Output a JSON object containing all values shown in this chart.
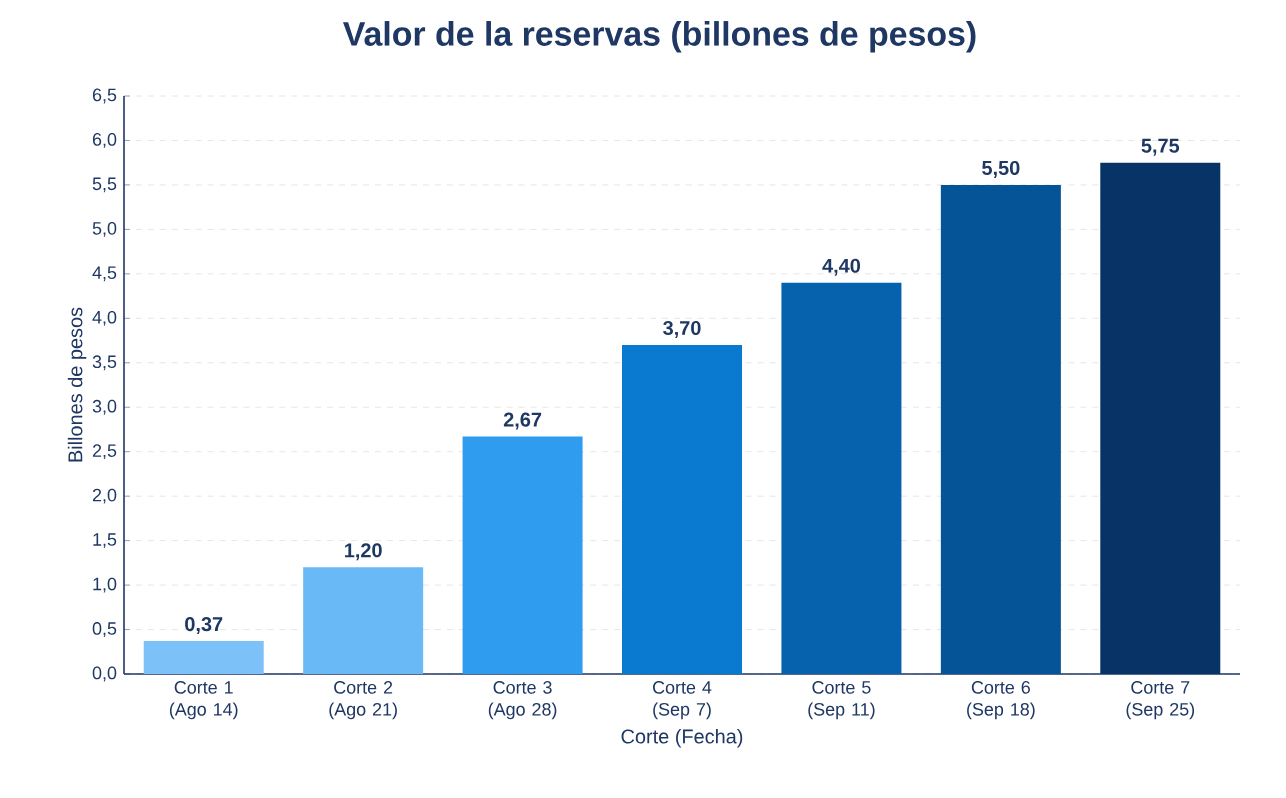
{
  "chart_data": {
    "type": "bar",
    "title": "Valor de la reservas (billones de pesos)",
    "xlabel": "Corte (Fecha)",
    "ylabel": "Billones de pesos",
    "categories": [
      "Corte 1 (Ago 14)",
      "Corte 2 (Ago 21)",
      "Corte 3 (Ago 28)",
      "Corte 4 (Sep 7)",
      "Corte 5 (Sep 11)",
      "Corte 6 (Sep 18)",
      "Corte 7 (Sep 25)"
    ],
    "values": [
      0.37,
      1.2,
      2.67,
      3.7,
      4.4,
      5.5,
      5.75
    ],
    "value_labels": [
      "0,37",
      "1,20",
      "2,67",
      "3,70",
      "4,40",
      "5,50",
      "5,75"
    ],
    "colors": [
      "#7cc2f8",
      "#6ab9f7",
      "#2f9cf0",
      "#0a7ad0",
      "#0762ad",
      "#045497",
      "#073366"
    ],
    "ylim": [
      0,
      6.5
    ],
    "yticks": [
      {
        "value": 0,
        "label": "0,0"
      },
      {
        "value": 0.5,
        "label": "0,5"
      },
      {
        "value": 1,
        "label": "1,0"
      },
      {
        "value": 1.5,
        "label": "1,5"
      },
      {
        "value": 2,
        "label": "2,0"
      },
      {
        "value": 2.5,
        "label": "2,5"
      },
      {
        "value": 3,
        "label": "3,0"
      },
      {
        "value": 3.5,
        "label": "3,5"
      },
      {
        "value": 4,
        "label": "4,0"
      },
      {
        "value": 4.5,
        "label": "4,5"
      },
      {
        "value": 5,
        "label": "5,0"
      },
      {
        "value": 5.5,
        "label": "5,5"
      },
      {
        "value": 6,
        "label": "6,0"
      },
      {
        "value": 6.5,
        "label": "6,5"
      }
    ],
    "grid": "y"
  }
}
